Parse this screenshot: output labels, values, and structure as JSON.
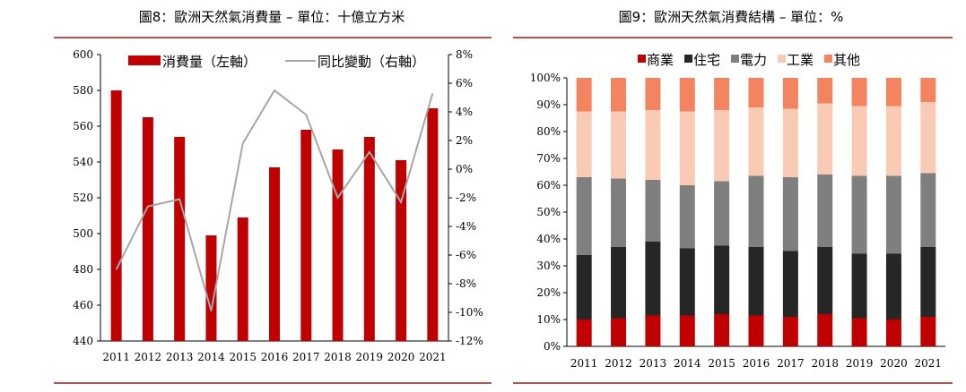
{
  "chart_data": [
    {
      "type": "bar+line",
      "title": "圖8：歐洲天然氣消費量 – 單位：十億立方米",
      "categories": [
        "2011",
        "2012",
        "2013",
        "2014",
        "2015",
        "2016",
        "2017",
        "2018",
        "2019",
        "2020",
        "2021"
      ],
      "series": [
        {
          "name": "消費量（左軸）",
          "type": "bar",
          "axis": "left",
          "color": "#c00000",
          "values": [
            580,
            565,
            554,
            499,
            509,
            537,
            558,
            547,
            554,
            541,
            570
          ]
        },
        {
          "name": "同比變動（右軸）",
          "type": "line",
          "axis": "right",
          "color": "#a6a6a6",
          "values": [
            -7.0,
            -2.6,
            -2.1,
            -9.9,
            1.8,
            5.5,
            3.8,
            -2.0,
            1.2,
            -2.3,
            5.3
          ]
        }
      ],
      "ylim_left": [
        440,
        600
      ],
      "yticks_left": [
        "440",
        "460",
        "480",
        "500",
        "520",
        "540",
        "560",
        "580",
        "600"
      ],
      "ylim_right": [
        -12,
        8
      ],
      "yticks_right": [
        "-12%",
        "-10%",
        "-8%",
        "-6%",
        "-4%",
        "-2%",
        "0%",
        "2%",
        "4%",
        "6%",
        "8%"
      ],
      "legend": [
        "消費量（左軸）",
        "同比變動（右軸）"
      ],
      "legend_position": "top",
      "grid": false
    },
    {
      "type": "stacked-bar",
      "title": "圖9：歐洲天然氣消費結構 – 單位：%",
      "categories": [
        "2011",
        "2012",
        "2013",
        "2014",
        "2015",
        "2016",
        "2017",
        "2018",
        "2019",
        "2020",
        "2021"
      ],
      "series": [
        {
          "name": "商業",
          "color": "#c00000",
          "values": [
            10,
            10.5,
            11.5,
            11.5,
            12,
            11.5,
            11,
            12,
            10.5,
            10,
            11
          ]
        },
        {
          "name": "住宅",
          "color": "#262626",
          "values": [
            24,
            26.5,
            27.5,
            25,
            25.5,
            25.5,
            24.5,
            25,
            24,
            24.5,
            26
          ]
        },
        {
          "name": "電力",
          "color": "#7f7f7f",
          "values": [
            29,
            25.5,
            23,
            23.5,
            24,
            26.5,
            27.5,
            27,
            29,
            29,
            27.5
          ]
        },
        {
          "name": "工業",
          "color": "#f9cbb5",
          "values": [
            24.5,
            25,
            26,
            27.5,
            26.5,
            25.5,
            25.5,
            26.5,
            26,
            26,
            26.5
          ]
        },
        {
          "name": "其他",
          "color": "#f4845f",
          "values": [
            12.5,
            12.5,
            12,
            12.5,
            12,
            11,
            11.5,
            9.5,
            10.5,
            10.5,
            9
          ]
        }
      ],
      "ylim": [
        0,
        100
      ],
      "yticks": [
        "0%",
        "10%",
        "20%",
        "30%",
        "40%",
        "50%",
        "60%",
        "70%",
        "80%",
        "90%",
        "100%"
      ],
      "legend": [
        "商業",
        "住宅",
        "電力",
        "工業",
        "其他"
      ],
      "legend_position": "top",
      "grid": false
    }
  ]
}
